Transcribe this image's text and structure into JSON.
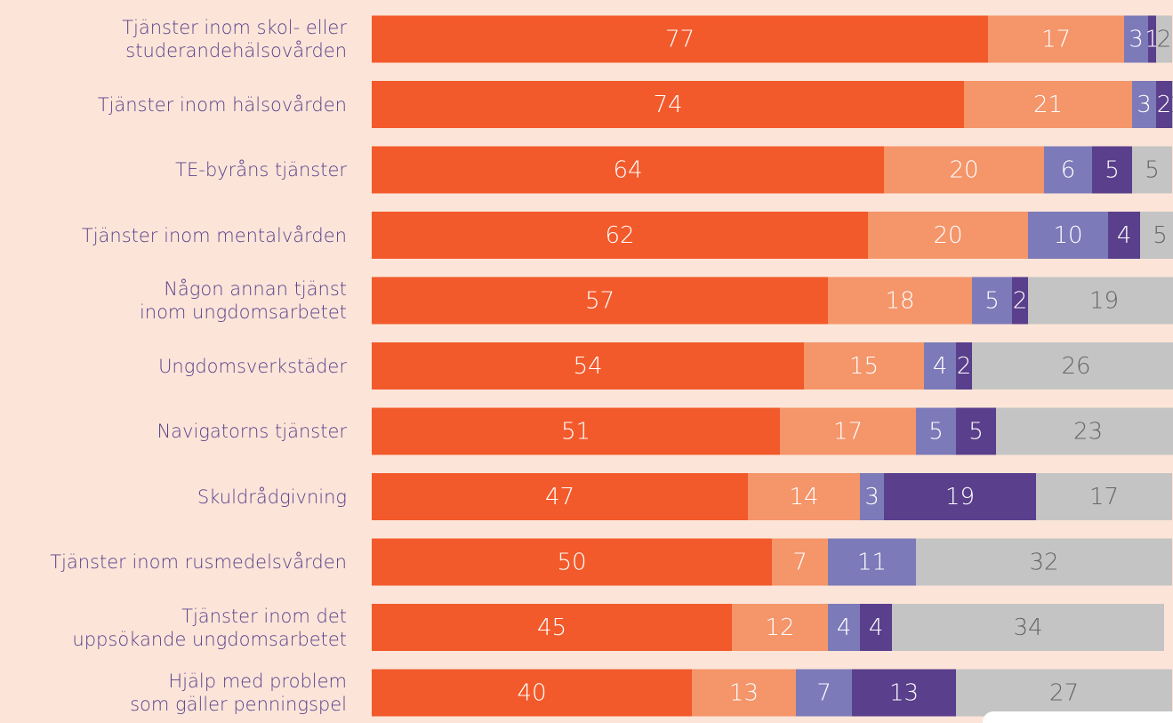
{
  "chart_data": {
    "type": "stacked-bar",
    "orientation": "horizontal",
    "categories": [
      "Tjänster inom skol- eller\nstuderandehälsovården",
      "Tjänster inom hälsovården",
      "TE-byråns tjänster",
      "Tjänster inom mentalvården",
      "Någon annan tjänst\ninom ungdomsarbetet",
      "Ungdomsverkstäder",
      "Navigatorns tjänster",
      "Skuldrådgivning",
      "Tjänster inom rusmedelsvården",
      "Tjänster inom det\nuppsökande ungdomsarbetet",
      "Hjälp med problem\nsom gäller penningspel"
    ],
    "series": [
      {
        "color": "#f25a2c",
        "label_color": "#ffffff",
        "values": [
          77,
          74,
          64,
          62,
          57,
          54,
          51,
          47,
          50,
          45,
          40
        ]
      },
      {
        "color": "#f4956a",
        "label_color": "#ffffff",
        "values": [
          17,
          21,
          20,
          20,
          18,
          15,
          17,
          14,
          7,
          12,
          13
        ]
      },
      {
        "color": "#7c7ab8",
        "label_color": "#ffffff",
        "values": [
          3,
          3,
          6,
          10,
          5,
          4,
          5,
          3,
          11,
          4,
          7
        ]
      },
      {
        "color": "#5a3f8c",
        "label_color": "#ffffff",
        "values": [
          1,
          2,
          5,
          4,
          2,
          2,
          5,
          19,
          null,
          4,
          13
        ]
      },
      {
        "color": "#c4c4c4",
        "label_color": "#666666",
        "values": [
          2,
          1,
          5,
          5,
          19,
          26,
          23,
          17,
          32,
          34,
          27
        ]
      }
    ],
    "xlim": [
      0,
      100
    ]
  }
}
